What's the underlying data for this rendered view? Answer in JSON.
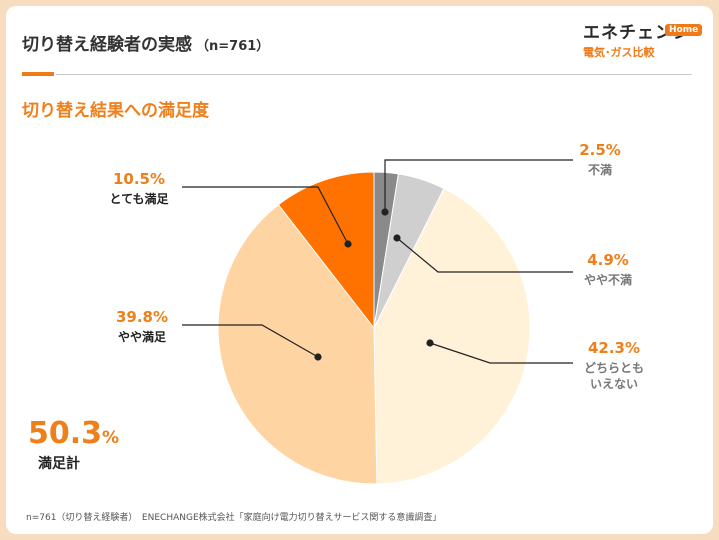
{
  "header": {
    "title": "切り替え経験者の実感",
    "sample": "（n=761）",
    "logo_main": "エネチェンジ",
    "logo_badge": "Home",
    "logo_sub": "電気･ガス比較"
  },
  "subtitle": "切り替え結果への満足度",
  "colors": {
    "accent": "#ef7f1a",
    "very_satisfied": "#ff7200",
    "somewhat_satisfied": "#ffd4a3",
    "neutral": "#fff2d8",
    "somewhat_dissatisfied": "#cfcfcf",
    "dissatisfied": "#8a8a8a"
  },
  "chart_data": {
    "type": "pie",
    "title": "切り替え結果への満足度",
    "slices": [
      {
        "name": "不満",
        "value": 2.5,
        "value_label": "2.5%"
      },
      {
        "name": "やや不満",
        "value": 4.9,
        "value_label": "4.9%"
      },
      {
        "name": "どちらともいえない",
        "value": 42.3,
        "value_label": "42.3%"
      },
      {
        "name": "やや満足",
        "value": 39.8,
        "value_label": "39.8%"
      },
      {
        "name": "とても満足",
        "value": 10.5,
        "value_label": "10.5%"
      }
    ]
  },
  "labels": {
    "dissatisfied": "不満",
    "somewhat_dissatisfied": "やや不満",
    "neutral_line1": "どちらとも",
    "neutral_line2": "いえない",
    "somewhat_satisfied": "やや満足",
    "very_satisfied": "とても満足"
  },
  "total": {
    "value": "50.3",
    "unit": "%",
    "label": "満足計"
  },
  "footer": "n=761（切り替え経験者）　ENECHANGE株式会社「家庭向け電力切り替えサービス関する意識調査」"
}
